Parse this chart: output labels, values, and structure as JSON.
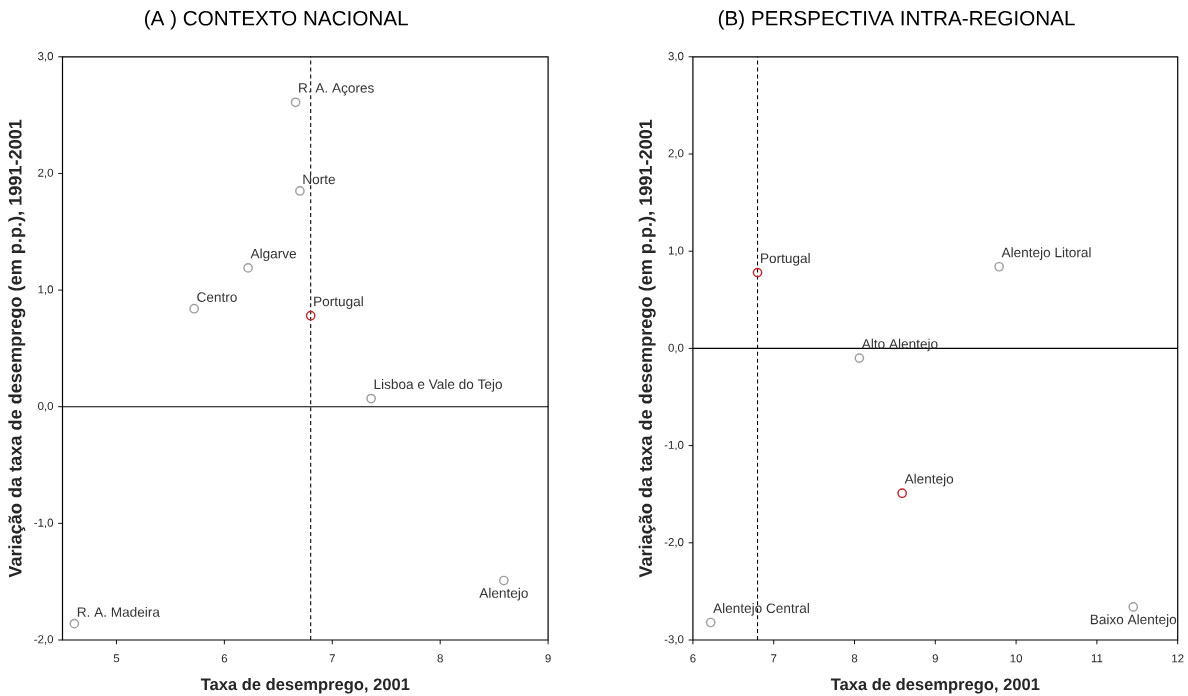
{
  "chart_data": [
    {
      "type": "scatter",
      "title": "(A ) CONTEXTO NACIONAL",
      "xlabel": "Taxa de desemprego, 2001",
      "ylabel": "Variação da taxa de desemprego (em p.p.), 1991-2001",
      "series": [
        {
          "x": [
            6.66,
            6.7,
            6.22,
            5.72,
            6.8,
            7.36,
            8.59,
            4.61
          ],
          "values": [
            2.61,
            1.85,
            1.19,
            0.84,
            0.78,
            0.07,
            -1.49,
            -1.86
          ],
          "colors": [
            "#a0a0a0",
            "#a0a0a0",
            "#a0a0a0",
            "#a0a0a0",
            "#c0282d",
            "#a0a0a0",
            "#a0a0a0",
            "#a0a0a0"
          ]
        }
      ],
      "annotations": [
        {
          "text": "R. A. Açores",
          "x": 6.66,
          "y": 2.61
        },
        {
          "text": "Norte",
          "x": 6.7,
          "y": 1.85
        },
        {
          "text": "Algarve",
          "x": 6.22,
          "y": 1.19
        },
        {
          "text": "Centro",
          "x": 5.72,
          "y": 0.84
        },
        {
          "text": "Portugal",
          "x": 6.8,
          "y": 0.78
        },
        {
          "text": "Lisboa e Vale do Tejo",
          "x": 7.36,
          "y": 0.07
        },
        {
          "text": "Alentejo",
          "x": 8.59,
          "y": -1.49
        },
        {
          "text": "R. A. Madeira",
          "x": 4.61,
          "y": -1.86
        }
      ],
      "xlim": [
        4.5,
        9
      ],
      "xticks": [
        5,
        6,
        7,
        8,
        9
      ],
      "ylim": [
        -2,
        3
      ],
      "yticks": [
        {
          "value": -2,
          "label": "-2,0"
        },
        {
          "value": -1,
          "label": "-1,0"
        },
        {
          "value": 0,
          "label": "0,0"
        },
        {
          "value": 1,
          "label": "1,0"
        },
        {
          "value": 2,
          "label": "2,0"
        },
        {
          "value": 3,
          "label": "3,0"
        }
      ],
      "ref_lines": [
        {
          "axis": "x",
          "value": 6.8,
          "line_style": "dashed"
        },
        {
          "axis": "y",
          "value": 0,
          "line_style": "solid"
        }
      ],
      "marker": "circle",
      "grid": false
    },
    {
      "type": "scatter",
      "title": "(B) PERSPECTIVA INTRA-REGIONAL",
      "xlabel": "Taxa de desemprego, 2001",
      "ylabel": "Variação da taxa de desemprego (em p.p.), 1991-2001",
      "series": [
        {
          "x": [
            6.8,
            9.79,
            8.06,
            8.59,
            6.22,
            11.45
          ],
          "values": [
            0.78,
            0.84,
            -0.1,
            -1.49,
            -2.82,
            -2.66
          ],
          "colors": [
            "#c0282d",
            "#a0a0a0",
            "#a0a0a0",
            "#c0282d",
            "#a0a0a0",
            "#a0a0a0"
          ]
        }
      ],
      "annotations": [
        {
          "text": "Portugal",
          "x": 6.8,
          "y": 0.78
        },
        {
          "text": "Alentejo Litoral",
          "x": 9.79,
          "y": 0.84
        },
        {
          "text": "Alto Alentejo",
          "x": 8.06,
          "y": -0.1
        },
        {
          "text": "Alentejo",
          "x": 8.59,
          "y": -1.49
        },
        {
          "text": "Alentejo Central",
          "x": 6.22,
          "y": -2.82
        },
        {
          "text": "Baixo Alentejo",
          "x": 11.45,
          "y": -2.66
        }
      ],
      "xlim": [
        6,
        12
      ],
      "xticks": [
        6,
        7,
        8,
        9,
        10,
        11,
        12
      ],
      "ylim": [
        -3,
        3
      ],
      "yticks": [
        {
          "value": -3,
          "label": "-3,0"
        },
        {
          "value": -2,
          "label": "-2,0"
        },
        {
          "value": -1,
          "label": "-1,0"
        },
        {
          "value": 0,
          "label": "0,0"
        },
        {
          "value": 1,
          "label": "1,0"
        },
        {
          "value": 2,
          "label": "2,0"
        },
        {
          "value": 3,
          "label": "3,0"
        }
      ],
      "ref_lines": [
        {
          "axis": "x",
          "value": 6.8,
          "line_style": "dashed"
        },
        {
          "axis": "y",
          "value": 0,
          "line_style": "solid"
        }
      ],
      "marker": "circle",
      "grid": false
    }
  ]
}
